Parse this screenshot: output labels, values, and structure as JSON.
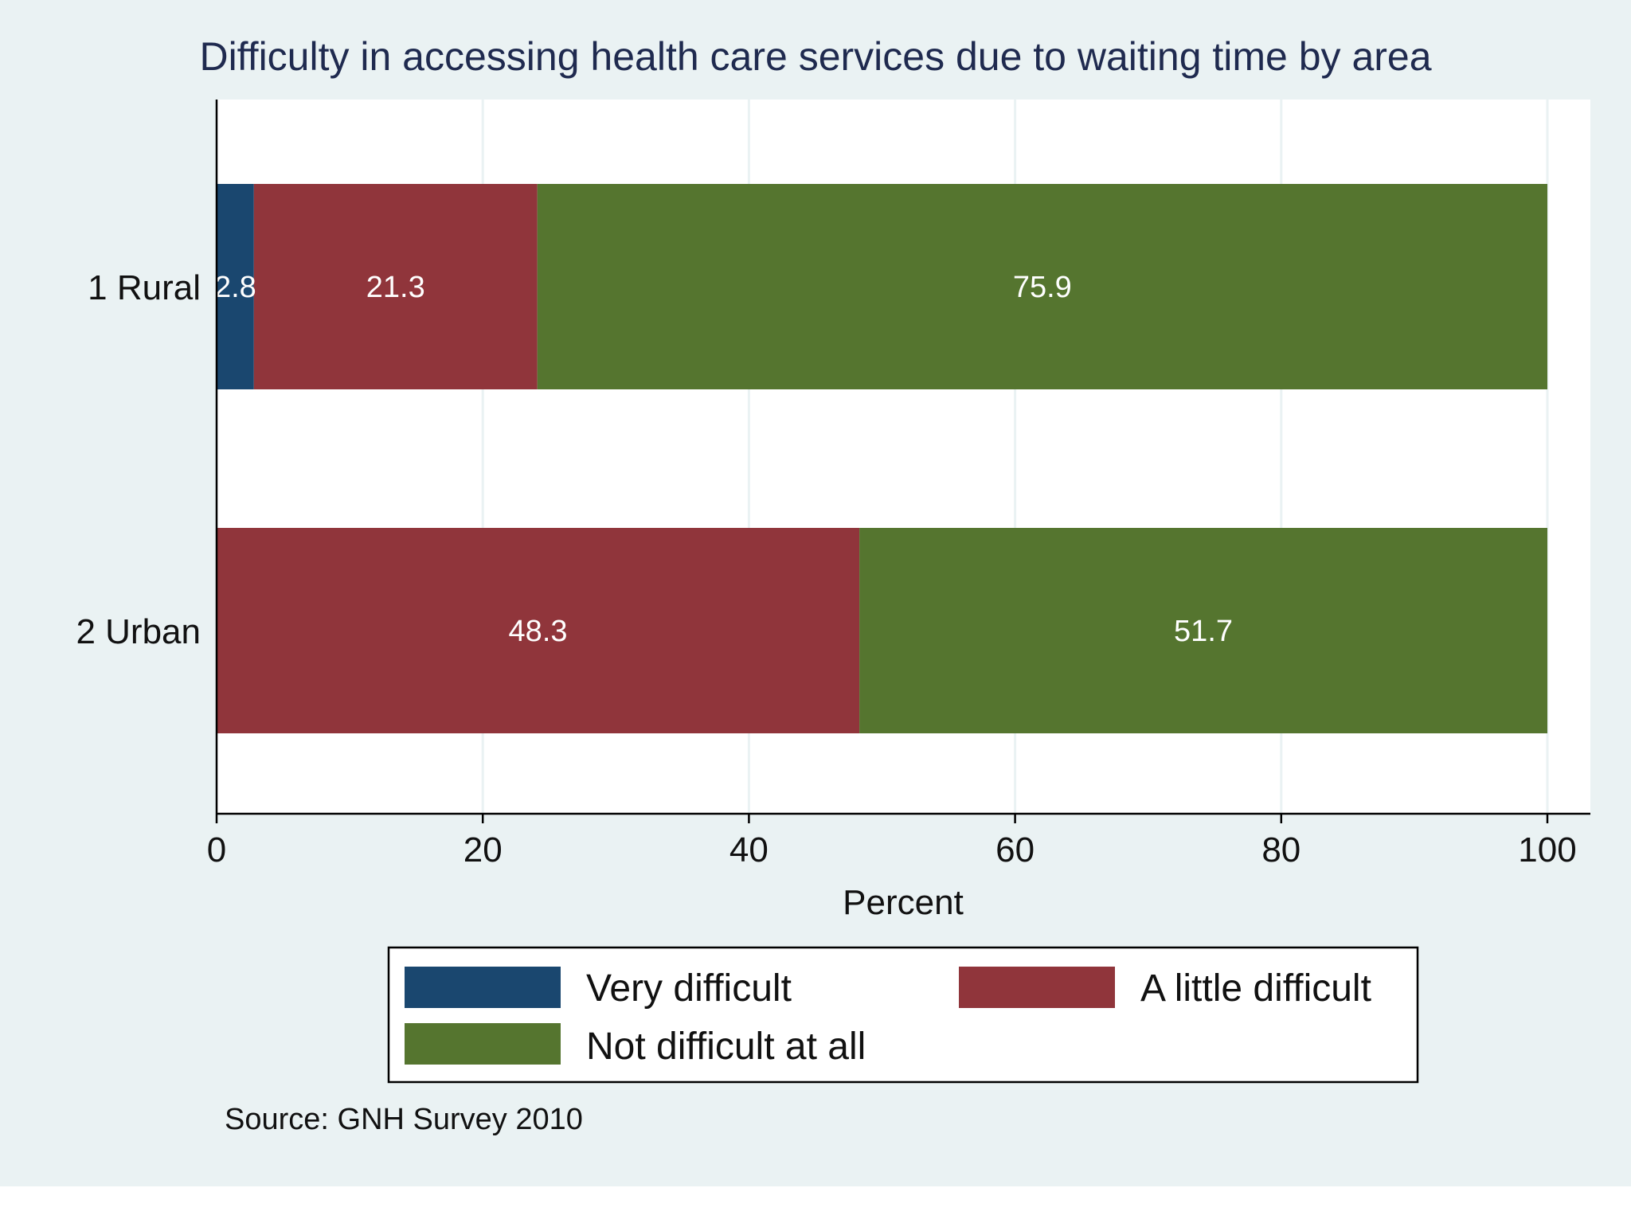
{
  "chart_data": {
    "type": "bar",
    "orientation": "horizontal",
    "stacked": true,
    "title": "Difficulty in accessing health care services due to waiting time by area",
    "xlabel": "Percent",
    "ylabel": "",
    "xlim": [
      0,
      100
    ],
    "xticks": [
      0,
      20,
      40,
      60,
      80,
      100
    ],
    "xtick_labels": [
      "0",
      "20",
      "40",
      "60",
      "80",
      "100"
    ],
    "grid": true,
    "categories": [
      "1 Rural",
      "2 Urban"
    ],
    "series": [
      {
        "name": "Very difficult",
        "color": "#1a476f",
        "values": [
          2.8,
          0
        ],
        "labels": [
          "2.8",
          ""
        ]
      },
      {
        "name": "A little difficult",
        "color": "#90353b",
        "values": [
          21.3,
          48.3
        ],
        "labels": [
          "21.3",
          "48.3"
        ]
      },
      {
        "name": "Not difficult at all",
        "color": "#55752f",
        "values": [
          75.9,
          51.7
        ],
        "labels": [
          "75.9",
          "51.7"
        ]
      }
    ],
    "legend_placement": "bottom",
    "note": "Source: GNH Survey 2010",
    "colors": {
      "outer_background": "#eaf2f3",
      "plot_background": "#ffffff",
      "grid": "#eaf2f3",
      "axis": "#000000"
    }
  }
}
